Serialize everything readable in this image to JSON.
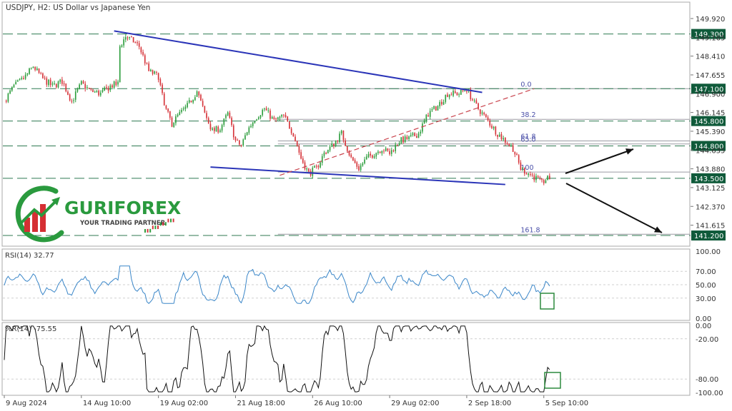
{
  "chart_data": {
    "type": "candlestick",
    "symbol_label": "USDJPY, H2:  US Dollar vs Japanese Yen",
    "price_axis": {
      "ylim": [
        140.8,
        150.55
      ],
      "ticks": [
        149.92,
        149.165,
        148.41,
        147.655,
        146.9,
        146.145,
        145.39,
        144.635,
        143.88,
        143.125,
        142.37,
        141.615
      ],
      "tick_labels": [
        "149.920",
        "149.165",
        "148.410",
        "147.655",
        "146.900",
        "146.145",
        "145.390",
        "144.635",
        "143.880",
        "143.125",
        "142.370",
        "141.615"
      ]
    },
    "x_axis": {
      "labels": [
        "9 Aug 2024",
        "14 Aug 10:00",
        "19 Aug 02:00",
        "21 Aug 18:00",
        "26 Aug 10:00",
        "29 Aug 02:00",
        "2 Sep 18:00",
        "5 Sep 10:00"
      ],
      "label_index": [
        0,
        40,
        80,
        120,
        160,
        200,
        240,
        280
      ],
      "bar_count": 290
    },
    "price_path": [
      [
        0,
        146.6
      ],
      [
        5,
        147.2
      ],
      [
        10,
        147.5
      ],
      [
        15,
        148.0
      ],
      [
        20,
        147.5
      ],
      [
        25,
        147.2
      ],
      [
        30,
        147.4
      ],
      [
        35,
        146.6
      ],
      [
        40,
        147.3
      ],
      [
        45,
        147.0
      ],
      [
        50,
        146.9
      ],
      [
        55,
        147.2
      ],
      [
        59,
        147.3
      ],
      [
        60,
        148.8
      ],
      [
        63,
        149.2
      ],
      [
        67,
        149.0
      ],
      [
        70,
        148.8
      ],
      [
        75,
        147.8
      ],
      [
        80,
        147.6
      ],
      [
        83,
        146.4
      ],
      [
        87,
        145.7
      ],
      [
        90,
        146.0
      ],
      [
        95,
        146.4
      ],
      [
        100,
        147.0
      ],
      [
        104,
        146.1
      ],
      [
        108,
        145.4
      ],
      [
        112,
        145.5
      ],
      [
        116,
        146.1
      ],
      [
        120,
        145.0
      ],
      [
        123,
        144.8
      ],
      [
        126,
        145.4
      ],
      [
        130,
        145.9
      ],
      [
        135,
        146.3
      ],
      [
        140,
        145.8
      ],
      [
        145,
        146.0
      ],
      [
        150,
        145.3
      ],
      [
        154,
        144.3
      ],
      [
        158,
        143.7
      ],
      [
        162,
        143.9
      ],
      [
        166,
        144.5
      ],
      [
        170,
        144.8
      ],
      [
        175,
        145.3
      ],
      [
        180,
        144.3
      ],
      [
        184,
        143.9
      ],
      [
        188,
        144.3
      ],
      [
        192,
        144.5
      ],
      [
        196,
        144.7
      ],
      [
        200,
        144.5
      ],
      [
        205,
        145.0
      ],
      [
        210,
        145.1
      ],
      [
        215,
        145.3
      ],
      [
        220,
        146.1
      ],
      [
        225,
        146.4
      ],
      [
        230,
        146.9
      ],
      [
        236,
        146.9
      ],
      [
        240,
        147.1
      ],
      [
        244,
        146.5
      ],
      [
        248,
        146.1
      ],
      [
        252,
        145.7
      ],
      [
        256,
        145.3
      ],
      [
        260,
        145.0
      ],
      [
        264,
        144.7
      ],
      [
        268,
        143.9
      ],
      [
        272,
        143.7
      ],
      [
        276,
        143.5
      ],
      [
        279,
        143.3
      ],
      [
        281,
        143.45
      ],
      [
        283,
        143.5
      ]
    ],
    "levels": [
      149.3,
      147.1,
      145.8,
      144.8,
      143.5,
      141.2
    ],
    "level_labels": [
      "149.300",
      "147.100",
      "145.800",
      "144.800",
      "143.500",
      "141.200"
    ],
    "fibonacci": [
      {
        "label": "0.0",
        "price": 147.1
      },
      {
        "label": "38.2",
        "price": 145.87
      },
      {
        "label": "61.8",
        "price": 145.0
      },
      {
        "label": "65.0",
        "price": 144.88
      },
      {
        "label": "100",
        "price": 143.75
      },
      {
        "label": "161.8",
        "price": 141.25
      }
    ],
    "rsi": {
      "label": "RSI(14) 32.77",
      "ylim": [
        0,
        100
      ],
      "ticks": [
        100,
        70,
        50,
        30,
        0
      ],
      "tick_labels": [
        "100.00",
        "70.00",
        "50.00",
        "30.00",
        "0.00"
      ]
    },
    "williams": {
      "label": "%R(14) -75.55",
      "ylim": [
        -100,
        0
      ],
      "ticks": [
        0,
        -20,
        -80,
        -100
      ],
      "tick_labels": [
        "0.00",
        "-20.00",
        "-80.00",
        "-100.00"
      ]
    },
    "colors": {
      "bull": "#2e9e3e",
      "bear": "#d6343a",
      "level_line": "#2f7a52",
      "level_label_bg": "#0f5a3a",
      "trendline": "#2b35b8",
      "fib_line": "#9a9aa2",
      "fib_text": "#4a4fa8",
      "dashed_trend": "#c9444e",
      "rsi_line": "#3a86c8",
      "highlight": "#2d8a3f",
      "axis_text": "#333333"
    }
  },
  "logo": {
    "brand": "GURIFOREX",
    "tagline": "YOUR TRADING PARTNER"
  }
}
